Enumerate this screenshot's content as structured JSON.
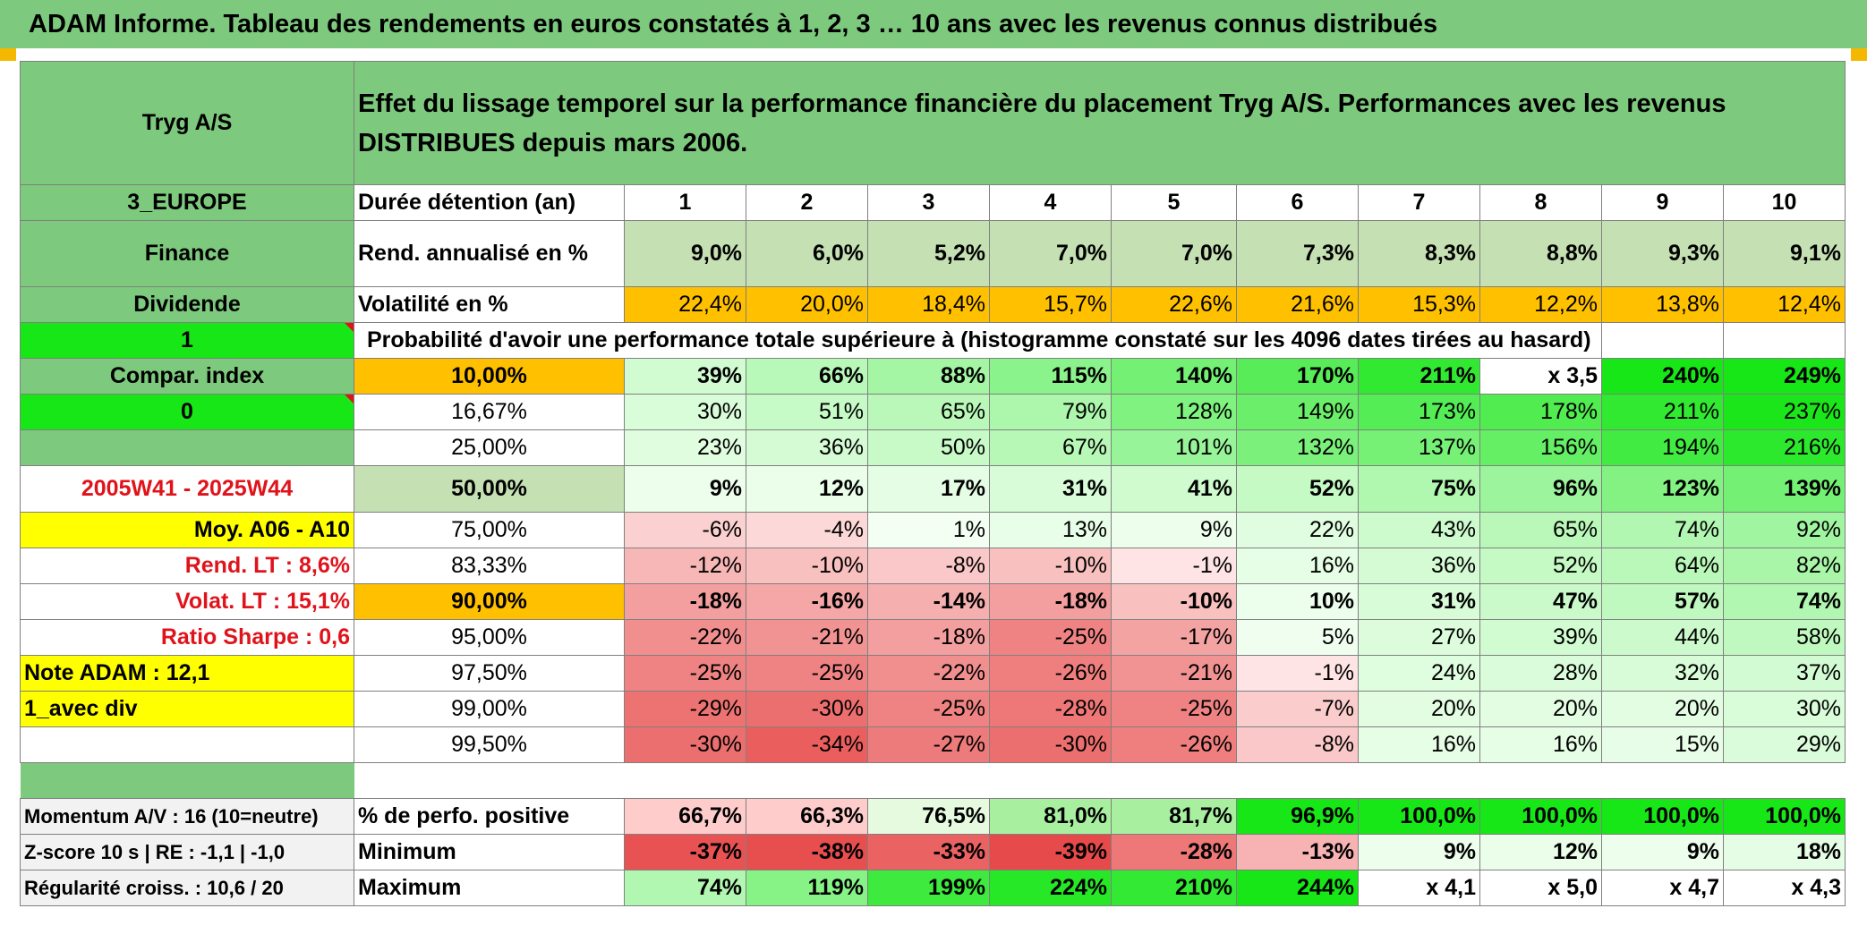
{
  "header": {
    "title": "ADAM Informe. Tableau des rendements en euros constatés à 1, 2, 3 … 10 ans avec les revenus connus distribués"
  },
  "left": {
    "name": "Tryg A/S",
    "region": "3_EUROPE",
    "sector": "Finance",
    "type": "Dividende",
    "flag1": "1",
    "compar": "Compar. index",
    "flag0": "0",
    "period": "2005W41 - 2025W44",
    "moy": "Moy. A06 - A10",
    "rend_lt": "Rend. LT :   8,6%",
    "volat_lt": "Volat. LT :   15,1%",
    "sharpe": "Ratio Sharpe :    0,6",
    "note": "Note ADAM : 12,1",
    "avec_div": "1_avec div",
    "momentum": "Momentum A/V : 16 (10=neutre)",
    "zscore": "Z-score 10 s | RE : -1,1 | -1,0",
    "regularite": "Régularité croiss. : 10,6 / 20"
  },
  "main": {
    "description": "Effet du lissage temporel sur la performance financière du placement Tryg A/S. Performances avec les revenus DISTRIBUES depuis mars 2006.",
    "duree_label": "Durée détention (an)",
    "years": [
      "1",
      "2",
      "3",
      "4",
      "5",
      "6",
      "7",
      "8",
      "9",
      "10"
    ],
    "rend_label": "Rend. annualisé en %",
    "rend": [
      "9,0%",
      "6,0%",
      "5,2%",
      "7,0%",
      "7,0%",
      "7,3%",
      "8,3%",
      "8,8%",
      "9,3%",
      "9,1%"
    ],
    "vol_label": "Volatilité en %",
    "vol": [
      "22,4%",
      "20,0%",
      "18,4%",
      "15,7%",
      "22,6%",
      "21,6%",
      "15,3%",
      "12,2%",
      "13,8%",
      "12,4%"
    ],
    "prob_label": "Probabilité d'avoir une performance totale supérieure à (histogramme constaté sur les 4096 dates tirées au hasard)",
    "rows": [
      {
        "p": "10,00%",
        "v": [
          "39%",
          "66%",
          "88%",
          "115%",
          "140%",
          "170%",
          "211%",
          "x 3,5",
          "240%",
          "249%"
        ]
      },
      {
        "p": "16,67%",
        "v": [
          "30%",
          "51%",
          "65%",
          "79%",
          "128%",
          "149%",
          "173%",
          "178%",
          "211%",
          "237%"
        ]
      },
      {
        "p": "25,00%",
        "v": [
          "23%",
          "36%",
          "50%",
          "67%",
          "101%",
          "132%",
          "137%",
          "156%",
          "194%",
          "216%"
        ]
      },
      {
        "p": "50,00%",
        "v": [
          "9%",
          "12%",
          "17%",
          "31%",
          "41%",
          "52%",
          "75%",
          "96%",
          "123%",
          "139%"
        ]
      },
      {
        "p": "75,00%",
        "v": [
          "-6%",
          "-4%",
          "1%",
          "13%",
          "9%",
          "22%",
          "43%",
          "65%",
          "74%",
          "92%"
        ]
      },
      {
        "p": "83,33%",
        "v": [
          "-12%",
          "-10%",
          "-8%",
          "-10%",
          "-1%",
          "16%",
          "36%",
          "52%",
          "64%",
          "82%"
        ]
      },
      {
        "p": "90,00%",
        "v": [
          "-18%",
          "-16%",
          "-14%",
          "-18%",
          "-10%",
          "10%",
          "31%",
          "47%",
          "57%",
          "74%"
        ]
      },
      {
        "p": "95,00%",
        "v": [
          "-22%",
          "-21%",
          "-18%",
          "-25%",
          "-17%",
          "5%",
          "27%",
          "39%",
          "44%",
          "58%"
        ]
      },
      {
        "p": "97,50%",
        "v": [
          "-25%",
          "-25%",
          "-22%",
          "-26%",
          "-21%",
          "-1%",
          "24%",
          "28%",
          "32%",
          "37%"
        ]
      },
      {
        "p": "99,00%",
        "v": [
          "-29%",
          "-30%",
          "-25%",
          "-28%",
          "-25%",
          "-7%",
          "20%",
          "20%",
          "20%",
          "30%"
        ]
      },
      {
        "p": "99,50%",
        "v": [
          "-30%",
          "-34%",
          "-27%",
          "-30%",
          "-26%",
          "-8%",
          "16%",
          "16%",
          "15%",
          "29%"
        ]
      }
    ],
    "pos_label": "% de perfo. positive",
    "pos": [
      "66,7%",
      "66,3%",
      "76,5%",
      "81,0%",
      "81,7%",
      "96,9%",
      "100,0%",
      "100,0%",
      "100,0%",
      "100,0%"
    ],
    "min_label": "Minimum",
    "min": [
      "-37%",
      "-38%",
      "-33%",
      "-39%",
      "-28%",
      "-13%",
      "9%",
      "12%",
      "9%",
      "18%"
    ],
    "max_label": "Maximum",
    "max": [
      "74%",
      "119%",
      "199%",
      "224%",
      "210%",
      "244%",
      "x 4,1",
      "x 5,0",
      "x 4,7",
      "x 4,3"
    ]
  },
  "colors": {
    "header_green": "#7dc97d",
    "bright_green": "#17e617",
    "orange": "#ffc000",
    "yellow": "#ffff00",
    "red_text": "#e0131b"
  }
}
